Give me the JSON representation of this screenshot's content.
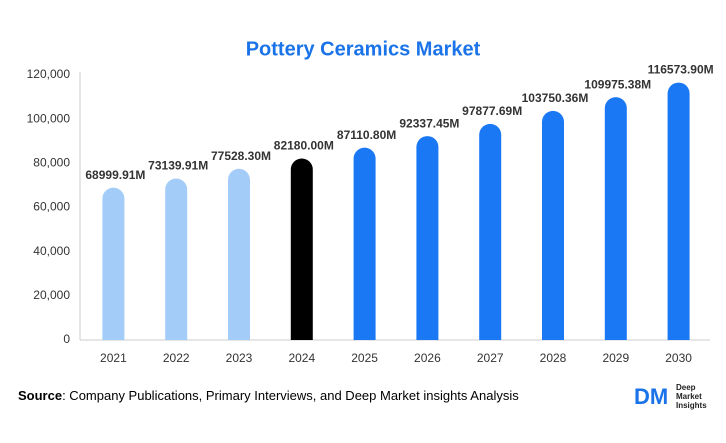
{
  "chart_data": {
    "type": "bar",
    "title": "Pottery Ceramics Market",
    "categories": [
      "2021",
      "2022",
      "2023",
      "2024",
      "2025",
      "2026",
      "2027",
      "2028",
      "2029",
      "2030"
    ],
    "values": [
      68999.91,
      73139.91,
      77528.3,
      82180.0,
      87110.8,
      92337.45,
      97877.69,
      103750.36,
      109975.38,
      116573.9
    ],
    "value_labels": [
      "68999.91M",
      "73139.91M",
      "77528.30M",
      "82180.00M",
      "87110.80M",
      "92337.45M",
      "97877.69M",
      "103750.36M",
      "109975.38M",
      "116573.90M"
    ],
    "colors": [
      "#a3cdf8",
      "#a3cdf8",
      "#a3cdf8",
      "#000000",
      "#1a78f5",
      "#1a78f5",
      "#1a78f5",
      "#1a78f5",
      "#1a78f5",
      "#1a78f5"
    ],
    "ylim": [
      0,
      120000
    ],
    "yticks": [
      0,
      {
        "value": 20000,
        "label": "20,000"
      },
      {
        "value": 40000,
        "label": "40,000"
      },
      {
        "value": 60000,
        "label": "60,000"
      },
      {
        "value": 80000,
        "label": "80,000"
      },
      {
        "value": 100000,
        "label": "100,000"
      },
      {
        "value": 120000,
        "label": "120,000"
      }
    ],
    "grid": false
  },
  "footer": {
    "source_label": "Source",
    "source_text": ": Company Publications, Primary Interviews, and Deep Market insights Analysis"
  },
  "logo": {
    "mark": "DM",
    "line1": "Deep",
    "line2": "Market",
    "line3": "Insights"
  }
}
